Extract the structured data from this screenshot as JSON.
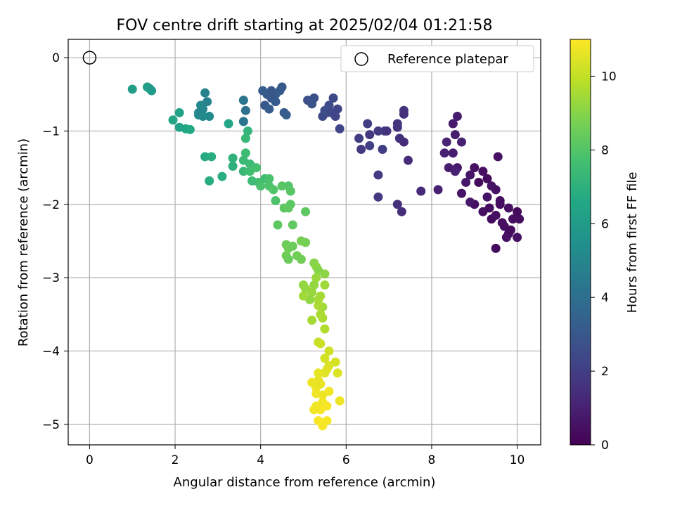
{
  "chart_data": {
    "type": "scatter",
    "title": "FOV centre drift starting at 2025/02/04 01:21:58",
    "xlabel": "Angular distance from reference (arcmin)",
    "ylabel": "Rotation from reference (arcmin)",
    "xlim": [
      -0.5,
      10.55
    ],
    "ylim": [
      -5.28,
      0.25
    ],
    "xticks": [
      0,
      2,
      4,
      6,
      8,
      10
    ],
    "yticks": [
      0,
      -1,
      -2,
      -3,
      -4,
      -5
    ],
    "xtick_labels": [
      "0",
      "2",
      "4",
      "6",
      "8",
      "10"
    ],
    "ytick_labels": [
      "0",
      "−1",
      "−2",
      "−3",
      "−4",
      "−5"
    ],
    "grid": true,
    "legend": {
      "placement": "top-right",
      "entries": [
        "Reference platepar"
      ]
    },
    "reference_point": {
      "x": 0,
      "y": 0
    },
    "colorbar": {
      "label": "Hours from first FF file",
      "colormap": "viridis",
      "range": [
        0,
        11
      ],
      "ticks": [
        0,
        2,
        4,
        6,
        8,
        10
      ],
      "tick_labels": [
        "0",
        "2",
        "4",
        "6",
        "8",
        "10"
      ]
    },
    "points": [
      [
        9.5,
        -2.6,
        0.3
      ],
      [
        9.7,
        -2.3,
        0.4
      ],
      [
        9.8,
        -2.4,
        0.5
      ],
      [
        9.9,
        -2.2,
        0.4
      ],
      [
        10.0,
        -2.45,
        0.5
      ],
      [
        10.0,
        -2.1,
        0.3
      ],
      [
        9.6,
        -2.0,
        0.4
      ],
      [
        9.4,
        -2.2,
        0.3
      ],
      [
        9.2,
        -2.1,
        0.5
      ],
      [
        9.3,
        -1.9,
        0.6
      ],
      [
        9.0,
        -2.0,
        0.4
      ],
      [
        9.5,
        -1.8,
        0.5
      ],
      [
        9.6,
        -1.95,
        0.4
      ],
      [
        9.8,
        -2.05,
        0.5
      ],
      [
        9.1,
        -1.7,
        0.3
      ],
      [
        8.9,
        -1.6,
        0.6
      ],
      [
        9.0,
        -1.5,
        0.5
      ],
      [
        9.2,
        -1.55,
        0.4
      ],
      [
        9.3,
        -1.65,
        0.3
      ],
      [
        9.4,
        -1.75,
        0.6
      ],
      [
        9.55,
        -1.35,
        0.5
      ],
      [
        8.8,
        -1.7,
        0.7
      ],
      [
        8.7,
        -1.85,
        0.6
      ],
      [
        8.9,
        -1.97,
        0.7
      ],
      [
        9.35,
        -2.05,
        0.4
      ],
      [
        9.5,
        -2.15,
        0.5
      ],
      [
        9.65,
        -2.25,
        0.4
      ],
      [
        9.85,
        -2.35,
        0.3
      ],
      [
        10.05,
        -2.2,
        0.4
      ],
      [
        9.75,
        -2.45,
        0.5
      ],
      [
        8.6,
        -1.5,
        0.8
      ],
      [
        8.4,
        -1.5,
        0.9
      ],
      [
        8.3,
        -1.3,
        1.0
      ],
      [
        8.5,
        -1.3,
        0.9
      ],
      [
        8.5,
        -0.9,
        0.8
      ],
      [
        8.6,
        -0.8,
        0.9
      ],
      [
        8.7,
        -1.15,
        1.0
      ],
      [
        8.35,
        -1.15,
        1.1
      ],
      [
        8.15,
        -1.8,
        1.0
      ],
      [
        8.55,
        -1.05,
        0.9
      ],
      [
        8.55,
        -1.55,
        1.0
      ],
      [
        7.75,
        -1.82,
        1.3
      ],
      [
        7.3,
        -2.1,
        1.4
      ],
      [
        7.2,
        -2.0,
        1.5
      ],
      [
        7.45,
        -1.4,
        1.4
      ],
      [
        7.35,
        -0.72,
        1.6
      ],
      [
        7.35,
        -0.77,
        1.5
      ],
      [
        7.2,
        -0.9,
        1.6
      ],
      [
        7.25,
        -1.1,
        1.5
      ],
      [
        7.35,
        -1.15,
        1.4
      ],
      [
        7.2,
        -0.95,
        1.7
      ],
      [
        6.9,
        -1.0,
        1.8
      ],
      [
        6.95,
        -1.0,
        1.7
      ],
      [
        6.75,
        -1.0,
        1.9
      ],
      [
        6.5,
        -0.9,
        2.0
      ],
      [
        6.55,
        -1.05,
        1.8
      ],
      [
        6.3,
        -1.1,
        2.0
      ],
      [
        6.35,
        -1.25,
        1.9
      ],
      [
        6.55,
        -1.2,
        2.1
      ],
      [
        6.85,
        -1.25,
        2.0
      ],
      [
        6.75,
        -1.6,
        1.9
      ],
      [
        6.75,
        -1.9,
        1.8
      ],
      [
        5.85,
        -0.97,
        2.3
      ],
      [
        5.7,
        -0.55,
        2.4
      ],
      [
        5.8,
        -0.7,
        2.3
      ],
      [
        5.6,
        -0.65,
        2.5
      ],
      [
        5.55,
        -0.75,
        2.4
      ],
      [
        5.45,
        -0.8,
        2.5
      ],
      [
        5.5,
        -0.72,
        2.6
      ],
      [
        5.65,
        -0.75,
        2.4
      ],
      [
        5.75,
        -0.8,
        2.3
      ],
      [
        5.25,
        -0.55,
        2.7
      ],
      [
        5.2,
        -0.58,
        2.8
      ],
      [
        5.1,
        -0.58,
        2.7
      ],
      [
        5.2,
        -0.63,
        2.8
      ],
      [
        4.5,
        -0.4,
        3.0
      ],
      [
        4.45,
        -0.45,
        3.1
      ],
      [
        4.35,
        -0.5,
        3.2
      ],
      [
        4.25,
        -0.45,
        3.0
      ],
      [
        4.15,
        -0.5,
        3.1
      ],
      [
        4.05,
        -0.45,
        3.2
      ],
      [
        4.25,
        -0.55,
        3.0
      ],
      [
        4.35,
        -0.6,
        3.1
      ],
      [
        4.1,
        -0.65,
        3.0
      ],
      [
        4.2,
        -0.7,
        3.2
      ],
      [
        4.55,
        -0.75,
        3.1
      ],
      [
        4.6,
        -0.78,
        3.2
      ],
      [
        3.6,
        -0.58,
        4.2
      ],
      [
        3.65,
        -0.72,
        4.1
      ],
      [
        3.6,
        -0.87,
        4.3
      ],
      [
        2.7,
        -0.48,
        4.8
      ],
      [
        2.75,
        -0.6,
        4.9
      ],
      [
        2.65,
        -0.7,
        5.0
      ],
      [
        2.6,
        -0.65,
        5.1
      ],
      [
        2.55,
        -0.75,
        5.0
      ],
      [
        2.8,
        -0.8,
        5.2
      ],
      [
        2.65,
        -0.8,
        5.2
      ],
      [
        2.55,
        -0.78,
        5.1
      ],
      [
        1.4,
        -0.42,
        6.0
      ],
      [
        1.35,
        -0.4,
        6.1
      ],
      [
        1.45,
        -0.45,
        6.0
      ],
      [
        1.0,
        -0.43,
        6.1
      ],
      [
        2.1,
        -0.75,
        6.3
      ],
      [
        1.95,
        -0.85,
        6.4
      ],
      [
        2.1,
        -0.95,
        6.3
      ],
      [
        2.25,
        -0.97,
        6.5
      ],
      [
        2.35,
        -0.98,
        6.6
      ],
      [
        2.7,
        -1.35,
        6.7
      ],
      [
        2.85,
        -1.35,
        6.8
      ],
      [
        3.1,
        -1.62,
        6.9
      ],
      [
        2.8,
        -1.68,
        6.8
      ],
      [
        3.25,
        -0.9,
        6.5
      ],
      [
        3.35,
        -1.48,
        7.0
      ],
      [
        3.35,
        -1.37,
        7.1
      ],
      [
        3.7,
        -1.0,
        7.2
      ],
      [
        3.65,
        -1.1,
        7.3
      ],
      [
        3.6,
        -1.4,
        7.4
      ],
      [
        3.75,
        -1.45,
        7.4
      ],
      [
        3.65,
        -1.3,
        7.5
      ],
      [
        3.6,
        -1.55,
        7.3
      ],
      [
        3.75,
        -1.55,
        7.6
      ],
      [
        3.8,
        -1.5,
        7.6
      ],
      [
        3.9,
        -1.5,
        7.7
      ],
      [
        3.95,
        -1.7,
        7.7
      ],
      [
        3.8,
        -1.68,
        7.5
      ],
      [
        4.0,
        -1.75,
        7.8
      ],
      [
        4.1,
        -1.65,
        7.6
      ],
      [
        4.2,
        -1.65,
        7.8
      ],
      [
        4.2,
        -1.75,
        7.9
      ],
      [
        4.3,
        -1.8,
        8.0
      ],
      [
        4.35,
        -1.95,
        7.9
      ],
      [
        4.5,
        -1.75,
        8.1
      ],
      [
        4.65,
        -1.75,
        8.0
      ],
      [
        4.7,
        -1.82,
        8.1
      ],
      [
        4.55,
        -2.05,
        8.2
      ],
      [
        4.65,
        -2.05,
        8.3
      ],
      [
        4.7,
        -2.0,
        8.2
      ],
      [
        4.4,
        -2.28,
        8.2
      ],
      [
        4.75,
        -2.28,
        8.3
      ],
      [
        5.05,
        -2.1,
        8.2
      ],
      [
        4.6,
        -2.55,
        8.5
      ],
      [
        4.65,
        -2.6,
        8.6
      ],
      [
        4.75,
        -2.57,
        8.5
      ],
      [
        4.6,
        -2.7,
        8.6
      ],
      [
        4.65,
        -2.75,
        8.5
      ],
      [
        4.85,
        -2.7,
        8.6
      ],
      [
        4.95,
        -2.75,
        8.6
      ],
      [
        4.95,
        -2.5,
        8.7
      ],
      [
        5.05,
        -2.52,
        8.7
      ],
      [
        5.25,
        -2.8,
        9.0
      ],
      [
        5.3,
        -2.85,
        9.1
      ],
      [
        5.35,
        -2.9,
        9.0
      ],
      [
        5.25,
        -3.1,
        9.2
      ],
      [
        5.3,
        -3.0,
        9.3
      ],
      [
        5.5,
        -2.95,
        9.1
      ],
      [
        5.2,
        -3.2,
        9.3
      ],
      [
        5.15,
        -3.3,
        9.2
      ],
      [
        5.05,
        -3.15,
        9.3
      ],
      [
        5.0,
        -3.25,
        9.4
      ],
      [
        5.0,
        -3.1,
        9.2
      ],
      [
        5.35,
        -3.3,
        9.5
      ],
      [
        5.45,
        -3.4,
        9.4
      ],
      [
        5.4,
        -3.25,
        9.5
      ],
      [
        5.5,
        -3.1,
        9.4
      ],
      [
        5.45,
        -3.55,
        9.6
      ],
      [
        5.2,
        -3.58,
        9.5
      ],
      [
        5.35,
        -3.38,
        9.6
      ],
      [
        5.4,
        -3.5,
        9.6
      ],
      [
        5.5,
        -3.7,
        9.7
      ],
      [
        5.35,
        -3.88,
        10.0
      ],
      [
        5.4,
        -3.9,
        10.1
      ],
      [
        5.6,
        -4.0,
        10.2
      ],
      [
        5.5,
        -4.1,
        10.3
      ],
      [
        5.6,
        -4.2,
        10.4
      ],
      [
        5.55,
        -4.25,
        10.5
      ],
      [
        5.75,
        -4.15,
        10.3
      ],
      [
        5.8,
        -4.3,
        10.4
      ],
      [
        5.5,
        -4.3,
        10.5
      ],
      [
        5.35,
        -4.3,
        10.6
      ],
      [
        5.35,
        -4.4,
        10.6
      ],
      [
        5.3,
        -4.5,
        10.7
      ],
      [
        5.4,
        -4.45,
        10.6
      ],
      [
        5.2,
        -4.43,
        10.7
      ],
      [
        5.45,
        -4.6,
        10.7
      ],
      [
        5.6,
        -4.55,
        10.8
      ],
      [
        5.3,
        -4.58,
        10.8
      ],
      [
        5.45,
        -4.7,
        10.8
      ],
      [
        5.3,
        -4.75,
        10.8
      ],
      [
        5.55,
        -4.75,
        10.9
      ],
      [
        5.4,
        -4.8,
        10.9
      ],
      [
        5.35,
        -4.95,
        10.9
      ],
      [
        5.45,
        -5.02,
        10.9
      ],
      [
        5.55,
        -4.95,
        10.9
      ],
      [
        5.85,
        -4.68,
        10.7
      ],
      [
        5.25,
        -4.8,
        10.8
      ]
    ]
  }
}
